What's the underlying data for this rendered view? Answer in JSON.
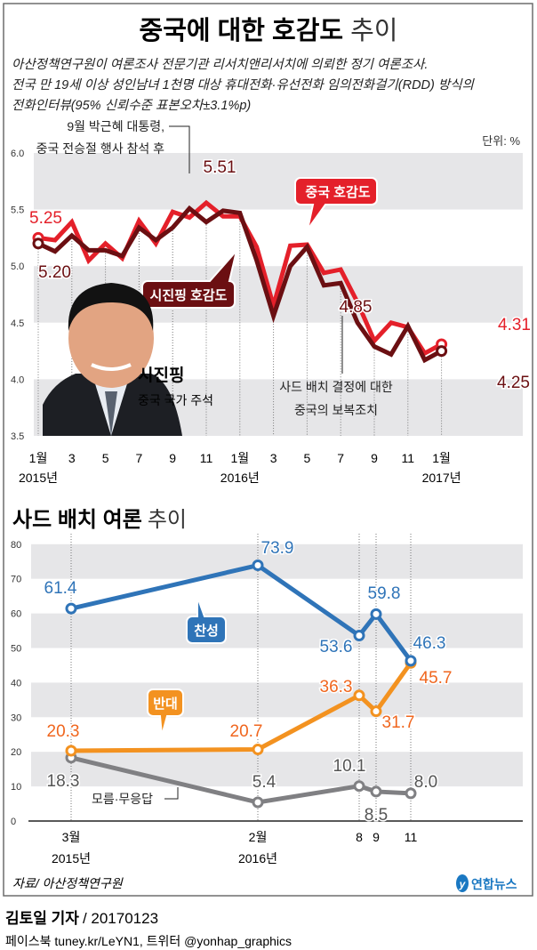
{
  "title": {
    "bold": "중국에 대한 호감도",
    "light": "추이"
  },
  "subtitle": [
    "아산정책연구원이 여론조사 전문기관 리서치앤리서치에 의뢰한 정기 여론조사.",
    "전국 만 19세 이상 성인남녀 1천명 대상 휴대전화·유선전화 임의전화걸기(RDD) 방식의",
    "전화인터뷰(95% 신뢰수준 표본오차±3.1%p)"
  ],
  "unit": "단위: %",
  "annotation_top": [
    "9월 박근혜 대통령,",
    "중국 전승절 행사 참석 후"
  ],
  "annotation_thaad": [
    "사드 배치 결정에 대한",
    "중국의 보복조치"
  ],
  "person": {
    "name": "시진핑",
    "role": "중국 국가 주석"
  },
  "source": "자료/ 아산정책연구원",
  "logo": "연합뉴스",
  "byline": {
    "name": "김토일 기자",
    "date": "/ 20170123"
  },
  "social": "페이스북 tuney.kr/LeYN1, 트위터 @yonhap_graphics",
  "colors": {
    "china": "#e4202a",
    "xi": "#6b0f12",
    "support": "#2f74b8",
    "oppose": "#f39220",
    "unknown": "#808083",
    "band": "#e6e6e8"
  },
  "chart_data": [
    {
      "type": "line",
      "title": "중국에 대한 호감도 추이",
      "ylim": [
        3.5,
        6.0
      ],
      "yticks": [
        "6.0",
        "5.5",
        "5.0",
        "4.5",
        "4.0",
        "3.5"
      ],
      "xtick_labels": [
        "1월",
        "3",
        "5",
        "7",
        "9",
        "11",
        "1월",
        "3",
        "5",
        "7",
        "9",
        "11",
        "1월"
      ],
      "year_labels": [
        "2015년",
        "2016년",
        "2017년"
      ],
      "x": [
        "2015-01",
        "2015-02",
        "2015-03",
        "2015-04",
        "2015-05",
        "2015-06",
        "2015-07",
        "2015-08",
        "2015-09",
        "2015-10",
        "2015-11",
        "2015-12",
        "2016-01",
        "2016-02",
        "2016-03",
        "2016-04",
        "2016-05",
        "2016-06",
        "2016-07",
        "2016-08",
        "2016-09",
        "2016-10",
        "2016-11",
        "2016-12",
        "2017-01"
      ],
      "grid": "alternating bands",
      "series": [
        {
          "name": "중국 호감도",
          "color": "#e4202a",
          "values": [
            5.25,
            5.23,
            5.39,
            5.05,
            5.2,
            5.07,
            5.4,
            5.2,
            5.48,
            5.43,
            5.56,
            5.44,
            5.44,
            5.17,
            4.65,
            5.18,
            5.19,
            4.94,
            4.97,
            4.68,
            4.34,
            4.5,
            4.46,
            4.23,
            4.31
          ],
          "labels": [
            {
              "index": 0,
              "text": "5.25"
            },
            {
              "index": 24,
              "text": "4.31"
            }
          ]
        },
        {
          "name": "시진핑 호감도",
          "color": "#6b0f12",
          "values": [
            5.2,
            5.13,
            5.27,
            5.14,
            5.14,
            5.09,
            5.34,
            5.23,
            5.34,
            5.51,
            5.39,
            5.49,
            5.47,
            5.05,
            4.56,
            5.0,
            5.17,
            4.83,
            4.85,
            4.5,
            4.29,
            4.22,
            4.47,
            4.17,
            4.25
          ],
          "labels": [
            {
              "index": 0,
              "text": "5.20"
            },
            {
              "index": 9,
              "text": "5.51"
            },
            {
              "index": 18,
              "text": "4.85"
            },
            {
              "index": 24,
              "text": "4.25"
            }
          ]
        }
      ]
    },
    {
      "type": "line",
      "title": {
        "bold": "사드 배치 여론",
        "light": "추이"
      },
      "ylim": [
        0,
        80
      ],
      "yticks": [
        "80",
        "70",
        "60",
        "50",
        "40",
        "30",
        "20",
        "10",
        "0"
      ],
      "x": [
        "2015-03",
        "2016-02",
        "2016-08",
        "2016-09",
        "2016-11"
      ],
      "xtick_labels": [
        "3월",
        "2월",
        "8",
        "9",
        "11"
      ],
      "year_labels": [
        "2015년",
        "2016년"
      ],
      "grid": "alternating bands",
      "series": [
        {
          "name": "찬성",
          "color": "#2f74b8",
          "values": [
            61.4,
            73.9,
            53.6,
            59.8,
            46.3
          ],
          "labels": [
            "61.4",
            "73.9",
            "53.6",
            "59.8",
            "46.3"
          ]
        },
        {
          "name": "반대",
          "color": "#f39220",
          "values": [
            20.3,
            20.7,
            36.3,
            31.7,
            45.7
          ],
          "labels": [
            "20.3",
            "20.7",
            "36.3",
            "31.7",
            "45.7"
          ]
        },
        {
          "name": "모름·무응답",
          "color": "#808083",
          "values": [
            18.3,
            5.4,
            10.1,
            8.5,
            8.0
          ],
          "labels": [
            "18.3",
            "5.4",
            "10.1",
            "8.5",
            "8.0"
          ]
        }
      ]
    }
  ]
}
